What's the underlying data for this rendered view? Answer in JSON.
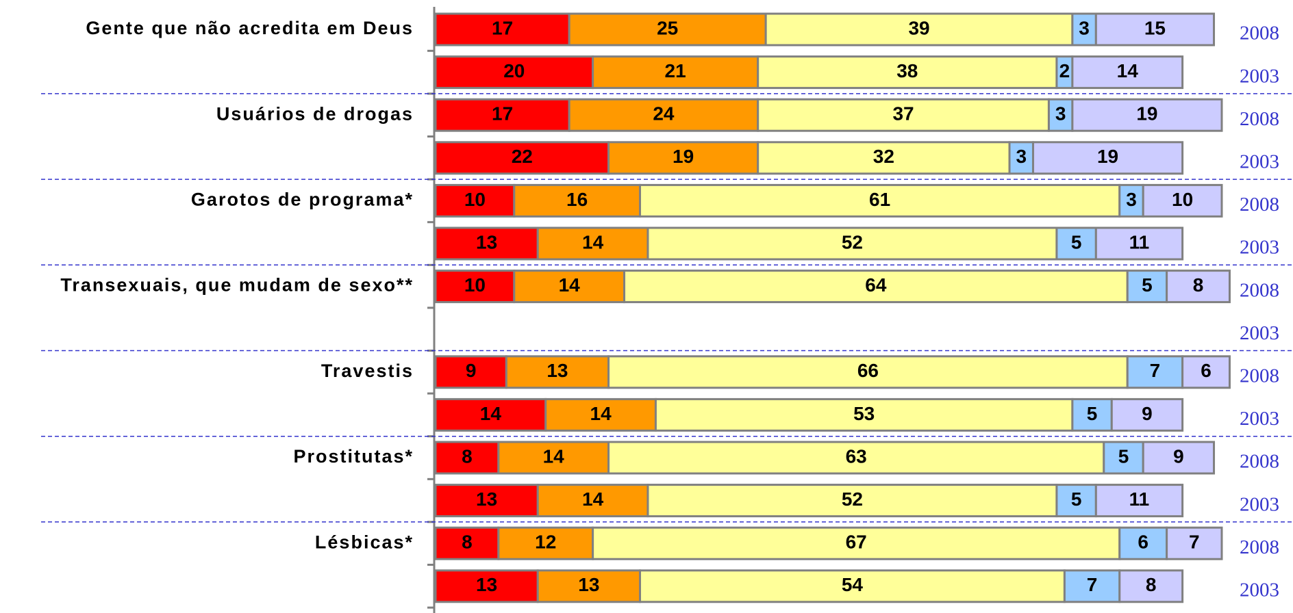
{
  "chart_data": {
    "type": "bar",
    "orientation": "horizontal",
    "stacked": true,
    "categories": [
      "Gente que não acredita em Deus",
      null,
      "Usuários de drogas",
      null,
      "Garotos de programa*",
      null,
      "Transexuais, que mudam de sexo**",
      null,
      "Travestis",
      null,
      "Prostitutas*",
      null,
      "Lésbicas*",
      null
    ],
    "years": [
      "2008",
      "2003",
      "2008",
      "2003",
      "2008",
      "2003",
      "2008",
      "2003",
      "2008",
      "2003",
      "2008",
      "2003",
      "2008",
      "2003"
    ],
    "xlim": [
      0,
      100
    ],
    "series": [
      {
        "color": "#ff0000",
        "values": [
          17,
          20,
          17,
          22,
          10,
          13,
          10,
          null,
          9,
          14,
          8,
          13,
          8,
          13
        ]
      },
      {
        "color": "#ff9900",
        "values": [
          25,
          21,
          24,
          19,
          16,
          14,
          14,
          null,
          13,
          14,
          14,
          14,
          12,
          13
        ]
      },
      {
        "color": "#ffff99",
        "values": [
          39,
          38,
          37,
          32,
          61,
          52,
          64,
          null,
          66,
          53,
          63,
          52,
          67,
          54
        ]
      },
      {
        "color": "#99ccff",
        "values": [
          3,
          2,
          3,
          3,
          3,
          5,
          5,
          null,
          7,
          5,
          5,
          5,
          6,
          7
        ]
      },
      {
        "color": "#ccccff",
        "values": [
          15,
          14,
          19,
          19,
          10,
          11,
          8,
          null,
          6,
          9,
          9,
          11,
          7,
          8
        ]
      }
    ]
  }
}
